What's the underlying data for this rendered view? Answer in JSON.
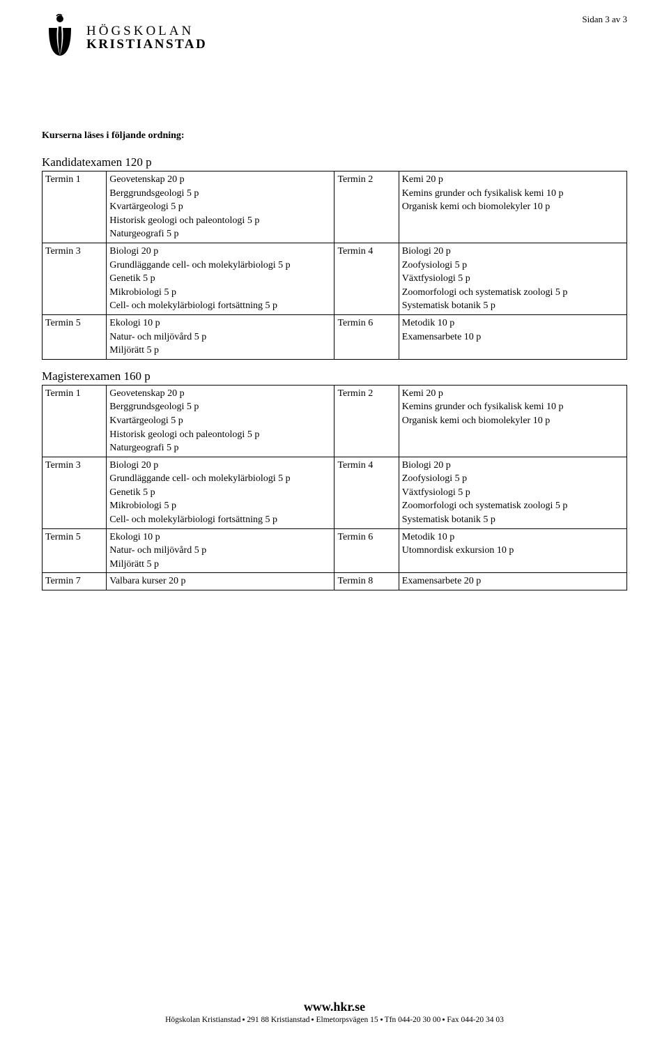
{
  "page_number": "Sidan 3 av 3",
  "logo": {
    "line1": "HÖGSKOLAN",
    "line2": "KRISTIANSTAD"
  },
  "intro": "Kurserna läses i följande ordning:",
  "footer": {
    "url": "www.hkr.se",
    "addr_parts": [
      "Högskolan Kristianstad",
      "291 88 Kristianstad",
      "Elmetorpsvägen 15",
      "Tfn 044-20 30 00",
      "Fax 044-20 34 03"
    ]
  },
  "tables": [
    {
      "title": "Kandidatexamen 120 p",
      "rows": [
        {
          "left_term": "Termin 1",
          "left_body": "Geovetenskap 20 p\nBerggrundsgeologi 5 p\nKvartärgeologi 5 p\nHistorisk geologi och paleontologi 5 p\nNaturgeografi 5 p",
          "right_term": "Termin 2",
          "right_body": "Kemi 20 p\nKemins grunder och fysikalisk kemi 10 p\nOrganisk kemi och biomolekyler 10 p"
        },
        {
          "left_term": "Termin 3",
          "left_body": "Biologi 20 p\nGrundläggande cell- och molekylärbiologi 5 p\nGenetik 5 p\nMikrobiologi 5 p\nCell- och molekylärbiologi fortsättning 5 p",
          "right_term": "Termin 4",
          "right_body": "Biologi 20 p\nZoofysiologi 5 p\nVäxtfysiologi 5 p\nZoomorfologi och systematisk zoologi 5 p\nSystematisk botanik 5 p"
        },
        {
          "left_term": "Termin 5",
          "left_body": "Ekologi 10 p\nNatur- och miljövård 5 p\nMiljörätt 5 p",
          "right_term": "Termin 6",
          "right_body": "Metodik 10 p\nExamensarbete 10 p"
        }
      ]
    },
    {
      "title": "Magisterexamen 160 p",
      "rows": [
        {
          "left_term": "Termin 1",
          "left_body": "Geovetenskap 20 p\nBerggrundsgeologi 5 p\nKvartärgeologi 5 p\nHistorisk geologi och paleontologi 5 p\nNaturgeografi 5 p",
          "right_term": "Termin 2",
          "right_body": "Kemi 20 p\nKemins grunder och fysikalisk kemi 10 p\nOrganisk kemi och biomolekyler 10 p"
        },
        {
          "left_term": "Termin 3",
          "left_body": "Biologi 20 p\nGrundläggande cell- och molekylärbiologi 5 p\nGenetik 5 p\nMikrobiologi 5 p\nCell- och molekylärbiologi fortsättning 5 p",
          "right_term": "Termin 4",
          "right_body": "Biologi 20 p\nZoofysiologi 5 p\nVäxtfysiologi 5 p\nZoomorfologi och systematisk zoologi 5 p\nSystematisk botanik 5 p"
        },
        {
          "left_term": "Termin 5",
          "left_body": "Ekologi 10 p\nNatur- och miljövård 5 p\nMiljörätt 5 p",
          "right_term": "Termin 6",
          "right_body": "Metodik 10 p\nUtomnordisk exkursion 10 p"
        },
        {
          "left_term": "Termin 7",
          "left_body": "Valbara kurser 20 p",
          "right_term": "Termin 8",
          "right_body": "Examensarbete 20 p"
        }
      ]
    }
  ]
}
